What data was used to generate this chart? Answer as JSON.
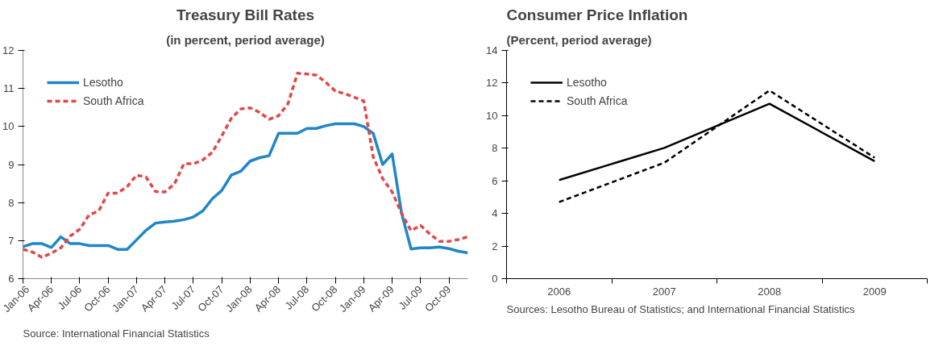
{
  "chart_data": [
    {
      "type": "line",
      "title": "Treasury Bill Rates",
      "subtitle": "(in percent, period average)",
      "categories": [
        "Jan-06",
        null,
        null,
        "Apr-06",
        null,
        null,
        "Jul-06",
        null,
        null,
        "Oct-06",
        null,
        null,
        "Jan-07",
        null,
        null,
        "Apr-07",
        null,
        null,
        "Jul-07",
        null,
        null,
        "Oct-07",
        null,
        null,
        "Jan-08",
        null,
        null,
        "Apr-08",
        null,
        null,
        "Jul-08",
        null,
        null,
        "Oct-08",
        null,
        null,
        "Jan-09",
        null,
        null,
        "Apr-09",
        null,
        null,
        "Jul-09",
        null,
        null,
        "Oct-09",
        null,
        null
      ],
      "series": [
        {
          "name": "Lesotho",
          "color": "#1f86c8",
          "line_style": "solid",
          "values": [
            6.84,
            6.92,
            6.92,
            6.82,
            7.1,
            6.92,
            6.92,
            6.87,
            6.87,
            6.87,
            6.77,
            6.77,
            7.02,
            7.27,
            7.46,
            7.49,
            7.51,
            7.55,
            7.62,
            7.78,
            8.1,
            8.32,
            8.72,
            8.82,
            9.09,
            9.18,
            9.23,
            9.82,
            9.82,
            9.82,
            9.95,
            9.95,
            10.02,
            10.07,
            10.07,
            10.07,
            10.0,
            9.82,
            9.0,
            9.28,
            7.72,
            6.78,
            6.81,
            6.81,
            6.83,
            6.79,
            6.72,
            6.68
          ]
        },
        {
          "name": "South Africa",
          "color": "#e04848",
          "line_style": "dashed",
          "values": [
            6.77,
            6.7,
            6.56,
            6.67,
            6.81,
            7.12,
            7.3,
            7.68,
            7.78,
            8.25,
            8.25,
            8.42,
            8.72,
            8.67,
            8.29,
            8.28,
            8.49,
            9.02,
            9.02,
            9.12,
            9.32,
            9.75,
            10.21,
            10.46,
            10.49,
            10.37,
            10.19,
            10.28,
            10.6,
            11.4,
            11.38,
            11.35,
            11.16,
            10.93,
            10.86,
            10.77,
            10.67,
            9.2,
            8.63,
            8.28,
            7.72,
            7.26,
            7.4,
            7.17,
            6.98,
            6.98,
            7.03,
            7.1
          ]
        }
      ],
      "ylim": [
        6,
        12
      ],
      "yticks": [
        6,
        7,
        8,
        9,
        10,
        11,
        12
      ],
      "grid": false,
      "legend": "top left",
      "annotations": [
        "Source: International Financial Statistics"
      ]
    },
    {
      "type": "line",
      "title": "Consumer Price Inflation",
      "subtitle": "(Percent, period average)",
      "categories": [
        "2006",
        "2007",
        "2008",
        "2009"
      ],
      "series": [
        {
          "name": "Lesotho",
          "color": "#000000",
          "line_style": "solid",
          "values": [
            6.05,
            8.02,
            10.73,
            7.2
          ]
        },
        {
          "name": "South Africa",
          "color": "#000000",
          "line_style": "dashed",
          "values": [
            4.7,
            7.11,
            11.54,
            7.42
          ]
        }
      ],
      "ylim": [
        0,
        14
      ],
      "yticks": [
        0,
        2,
        4,
        6,
        8,
        10,
        12,
        14
      ],
      "grid": false,
      "legend": "top left",
      "annotations": [
        "Sources: Lesotho Bureau of Statistics; and International Financial Statistics"
      ]
    }
  ]
}
